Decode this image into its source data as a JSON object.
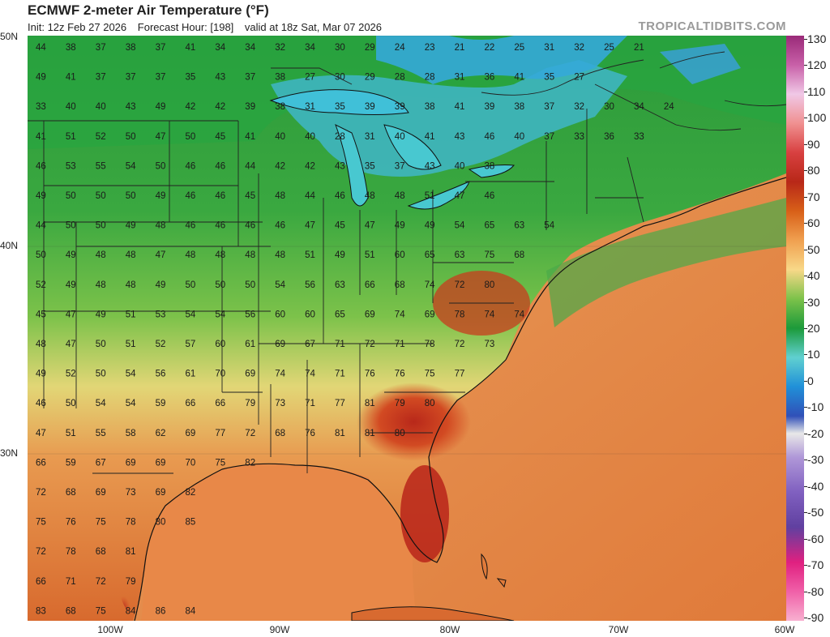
{
  "header": {
    "title": "ECMWF 2-meter Air Temperature (°F)",
    "init": "Init: 12z Feb 27 2026",
    "forecast_hour": "Forecast Hour: [198]",
    "valid": "valid at 18z Sat, Mar 07 2026",
    "brand": "TROPICALTIDBITS.COM"
  },
  "axes": {
    "lat_labels": [
      "50N",
      "40N",
      "30N"
    ],
    "lon_labels": [
      "100W",
      "90W",
      "80W",
      "70W",
      "60W"
    ]
  },
  "colorbar": {
    "ticks": [
      "130",
      "120",
      "110",
      "100",
      "90",
      "80",
      "70",
      "60",
      "50",
      "40",
      "30",
      "20",
      "10",
      "0",
      "-10",
      "-20",
      "-30",
      "-40",
      "-50",
      "-60",
      "-70",
      "-80",
      "-90"
    ],
    "colors": [
      "#a0307d",
      "#d070b0",
      "#f0c0e0",
      "#f08080",
      "#d84040",
      "#b82818",
      "#d86018",
      "#f0a050",
      "#f8d888",
      "#60b040",
      "#20a040",
      "#60d0d0",
      "#2080d0",
      "#3060c0",
      "#e0e0e0",
      "#a080d0",
      "#8060c0",
      "#6040a0",
      "#e02080",
      "#f050a0",
      "#f8a0c0"
    ]
  },
  "station_values": [
    {
      "row": 0,
      "vals": [
        "44",
        "38",
        "37",
        "38",
        "37",
        "41",
        "34",
        "34",
        "32",
        "34",
        "30",
        "29",
        "24",
        "23",
        "21",
        "22",
        "25",
        "31",
        "32",
        "25",
        "21"
      ]
    },
    {
      "row": 1,
      "vals": [
        "49",
        "41",
        "37",
        "37",
        "37",
        "35",
        "43",
        "37",
        "38",
        "27",
        "30",
        "29",
        "28",
        "28",
        "31",
        "36",
        "41",
        "35",
        "27"
      ]
    },
    {
      "row": 2,
      "vals": [
        "33",
        "40",
        "40",
        "43",
        "49",
        "42",
        "42",
        "39",
        "38",
        "31",
        "35",
        "39",
        "39",
        "38",
        "41",
        "39",
        "38",
        "37",
        "32",
        "30",
        "34",
        "24"
      ]
    },
    {
      "row": 3,
      "vals": [
        "41",
        "51",
        "52",
        "50",
        "47",
        "50",
        "45",
        "41",
        "40",
        "40",
        "28",
        "31",
        "40",
        "41",
        "43",
        "46",
        "40",
        "37",
        "33",
        "36",
        "33"
      ]
    },
    {
      "row": 4,
      "vals": [
        "46",
        "53",
        "55",
        "54",
        "50",
        "46",
        "46",
        "44",
        "42",
        "42",
        "43",
        "35",
        "37",
        "43",
        "40",
        "38"
      ]
    },
    {
      "row": 5,
      "vals": [
        "49",
        "50",
        "50",
        "50",
        "49",
        "46",
        "46",
        "45",
        "48",
        "44",
        "46",
        "48",
        "48",
        "51",
        "47",
        "46"
      ]
    },
    {
      "row": 6,
      "vals": [
        "44",
        "50",
        "50",
        "49",
        "48",
        "46",
        "46",
        "46",
        "46",
        "47",
        "45",
        "47",
        "49",
        "49",
        "54",
        "65",
        "63",
        "54"
      ]
    },
    {
      "row": 7,
      "vals": [
        "50",
        "49",
        "48",
        "48",
        "47",
        "48",
        "48",
        "48",
        "48",
        "51",
        "49",
        "51",
        "60",
        "65",
        "63",
        "75",
        "68"
      ]
    },
    {
      "row": 8,
      "vals": [
        "52",
        "49",
        "48",
        "48",
        "49",
        "50",
        "50",
        "50",
        "54",
        "56",
        "63",
        "66",
        "68",
        "74",
        "72",
        "80"
      ]
    },
    {
      "row": 9,
      "vals": [
        "45",
        "47",
        "49",
        "51",
        "53",
        "54",
        "54",
        "56",
        "60",
        "60",
        "65",
        "69",
        "74",
        "69",
        "78",
        "74",
        "74"
      ]
    },
    {
      "row": 10,
      "vals": [
        "48",
        "47",
        "50",
        "51",
        "52",
        "57",
        "60",
        "61",
        "69",
        "67",
        "71",
        "72",
        "71",
        "78",
        "72",
        "73"
      ]
    },
    {
      "row": 11,
      "vals": [
        "49",
        "52",
        "50",
        "54",
        "56",
        "61",
        "70",
        "69",
        "74",
        "74",
        "71",
        "76",
        "76",
        "75",
        "77"
      ]
    },
    {
      "row": 12,
      "vals": [
        "46",
        "50",
        "54",
        "54",
        "59",
        "66",
        "66",
        "79",
        "73",
        "71",
        "77",
        "81",
        "79",
        "80"
      ]
    },
    {
      "row": 13,
      "vals": [
        "47",
        "51",
        "55",
        "58",
        "62",
        "69",
        "77",
        "72",
        "68",
        "76",
        "81",
        "81",
        "80"
      ]
    },
    {
      "row": 14,
      "vals": [
        "66",
        "59",
        "67",
        "69",
        "69",
        "70",
        "75",
        "82"
      ]
    },
    {
      "row": 15,
      "vals": [
        "72",
        "68",
        "69",
        "73",
        "69",
        "82"
      ]
    },
    {
      "row": 16,
      "vals": [
        "75",
        "76",
        "75",
        "78",
        "80",
        "85"
      ]
    },
    {
      "row": 17,
      "vals": [
        "72",
        "78",
        "68",
        "81"
      ]
    },
    {
      "row": 18,
      "vals": [
        "66",
        "71",
        "72",
        "79"
      ]
    },
    {
      "row": 19,
      "vals": [
        "83",
        "68",
        "75",
        "84",
        "86",
        "84"
      ]
    }
  ]
}
